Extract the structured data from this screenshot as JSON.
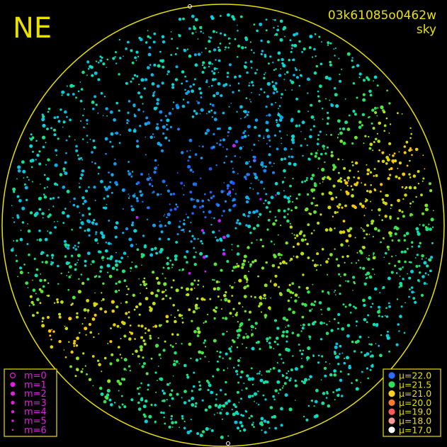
{
  "header": {
    "direction": "NE",
    "frame_id": "03k61085o0462w",
    "mode": "sky"
  },
  "magnitude_legend": {
    "items": [
      "m=0",
      "m=1",
      "m=2",
      "m=3",
      "m=4",
      "m=5",
      "m=6"
    ],
    "color": "#e020e0"
  },
  "brightness_legend": {
    "items": [
      {
        "label": "μ=22.0",
        "color": "#2f6bff"
      },
      {
        "label": "μ=21.5",
        "color": "#2ee05a"
      },
      {
        "label": "μ=21.0",
        "color": "#ffd21e"
      },
      {
        "label": "μ=20.0",
        "color": "#ff7a2a"
      },
      {
        "label": "μ=19.0",
        "color": "#ff5a5a"
      },
      {
        "label": "μ=18.0",
        "color": "#ff9a9a"
      },
      {
        "label": "μ=17.0",
        "color": "#ffffff"
      }
    ]
  }
}
